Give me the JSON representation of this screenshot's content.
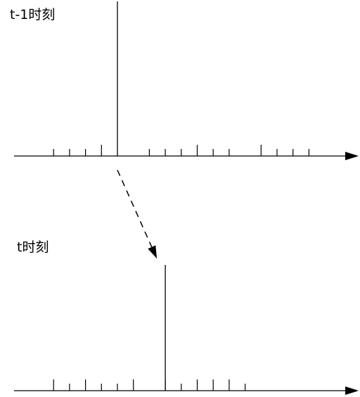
{
  "panels": [
    {
      "label": "t-1时刻",
      "short_ticks": [
        -4,
        -3,
        -2,
        2,
        3,
        4,
        6,
        7,
        10,
        11,
        12
      ],
      "tall_ticks": [
        -1,
        5,
        9
      ],
      "peak_position": 0
    },
    {
      "label": "t时刻",
      "short_ticks": [
        -3,
        -1,
        0,
        4,
        8
      ],
      "tall_ticks": [
        -4,
        -2,
        1,
        3,
        5,
        6,
        7
      ],
      "peak_position": 3
    }
  ],
  "colors": {
    "stroke": "#000000",
    "background": "#ffffff"
  },
  "transition_arrow": {
    "style": "dashed",
    "from_position": 0,
    "to_position": 3
  }
}
